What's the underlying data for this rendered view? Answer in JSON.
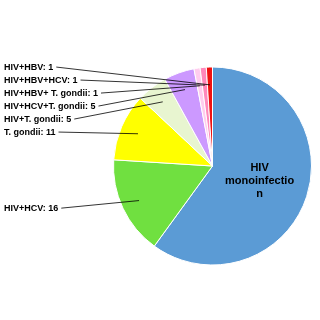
{
  "chart_data": {
    "type": "pie",
    "categories": [
      "HIV\nmonoinfectio\nn",
      "HIV+HCV: 16",
      "T. gondii: 11",
      "HIV+T. gondii: 5",
      "HIV+HCV+T. gondii: 5",
      "HIV+HBV+ T. gondii: 1",
      "HIV+HBV+HCV: 1",
      "HIV+HBV: 1"
    ],
    "values": [
      60,
      16,
      11,
      5,
      5,
      1,
      1,
      1
    ],
    "colors": [
      "#5b9bd5",
      "#70e040",
      "#ffff00",
      "#e8f5d0",
      "#cc99ff",
      "#ffccee",
      "#ff88bb",
      "#ee1111"
    ]
  }
}
